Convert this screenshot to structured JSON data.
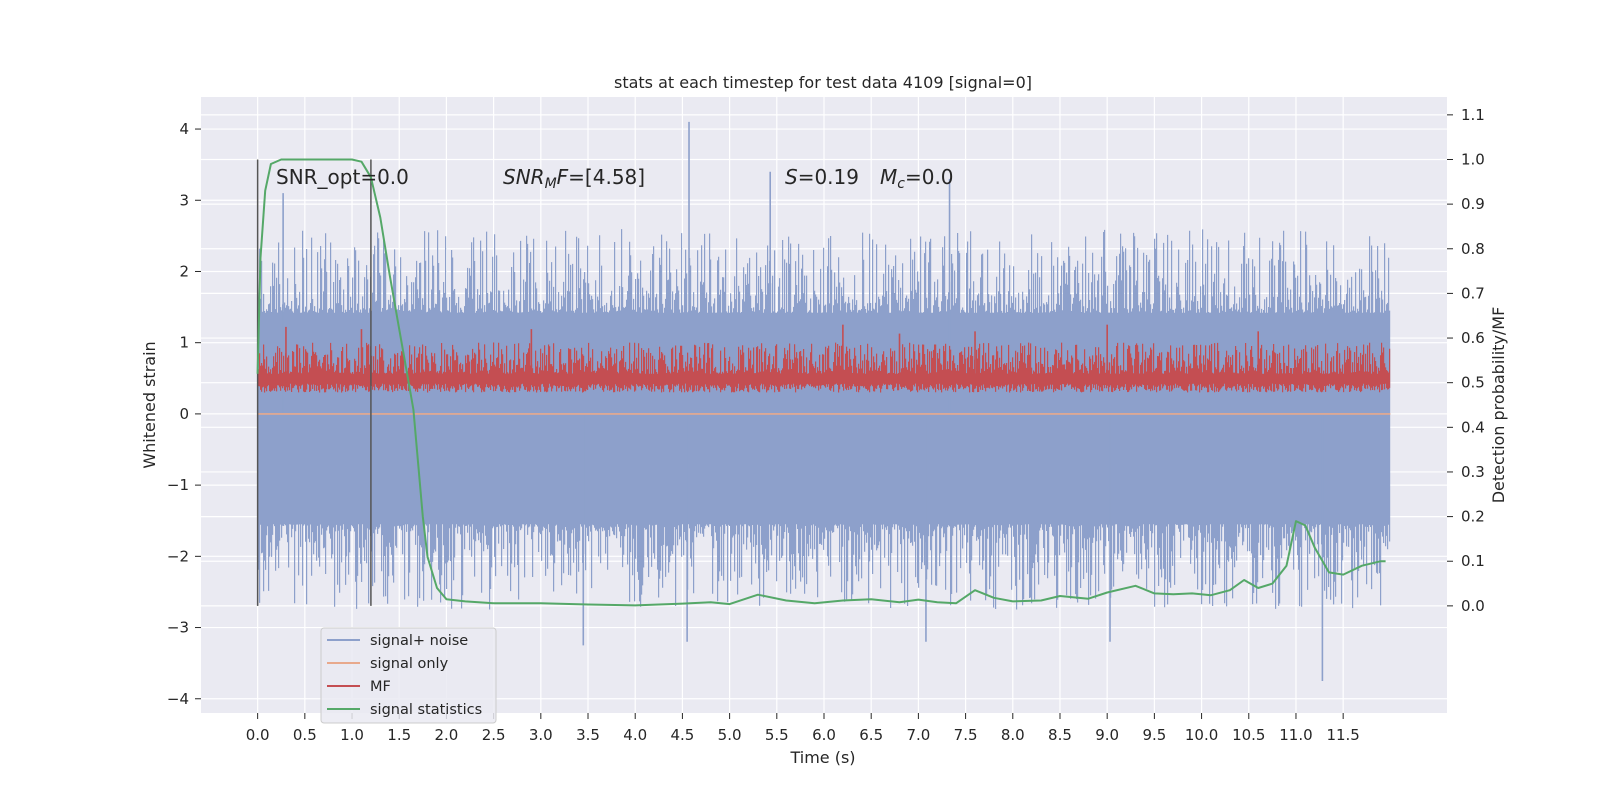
{
  "chart_data": {
    "type": "line",
    "title": "stats at each timestep for test data 4109 [signal=0]",
    "xlabel": "Time (s)",
    "ylabel_left": "Whitened strain",
    "ylabel_right": "Detection probability/MF",
    "xlim": [
      -0.6,
      12.6
    ],
    "ylim_left": [
      -4.2,
      4.45
    ],
    "ylim_right": [
      -0.24,
      1.14
    ],
    "x_ticks": [
      0.0,
      0.5,
      1.0,
      1.5,
      2.0,
      2.5,
      3.0,
      3.5,
      4.0,
      4.5,
      5.0,
      5.5,
      6.0,
      6.5,
      7.0,
      7.5,
      8.0,
      8.5,
      9.0,
      9.5,
      10.0,
      10.5,
      11.0,
      11.5
    ],
    "x_tick_labels": [
      "0.0",
      "0.5",
      "1.0",
      "1.5",
      "2.0",
      "2.5",
      "3.0",
      "3.5",
      "4.0",
      "4.5",
      "5.0",
      "5.5",
      "6.0",
      "6.5",
      "7.0",
      "7.5",
      "8.0",
      "8.5",
      "9.0",
      "9.5",
      "10.0",
      "10.5",
      "11.0",
      "11.5"
    ],
    "y_ticks_left": [
      4,
      3,
      2,
      1,
      0,
      -1,
      -2,
      -3,
      -4
    ],
    "y_tick_labels_left": [
      "4",
      "3",
      "2",
      "1",
      "0",
      "−1",
      "−2",
      "−3",
      "−4"
    ],
    "y_ticks_right": [
      1.1,
      1.0,
      0.9,
      0.8,
      0.7,
      0.6,
      0.5,
      0.4,
      0.3,
      0.2,
      0.1,
      0.0
    ],
    "y_tick_labels_right": [
      "1.1",
      "1.0",
      "0.9",
      "0.8",
      "0.7",
      "0.6",
      "0.5",
      "0.4",
      "0.3",
      "0.2",
      "0.1",
      "0.0"
    ],
    "grid": true,
    "legend_position": "lower-left",
    "annotations": [
      "SNR_opt=0.0",
      "SNR_MF=[4.58]",
      "S=0.19",
      "M_c=0.0"
    ],
    "vertical_markers": [
      {
        "x": 0.0,
        "y_range_right": [
          0.0,
          1.0
        ]
      },
      {
        "x": 1.2,
        "y_range_right": [
          0.0,
          1.0
        ]
      }
    ],
    "series": [
      {
        "name": "signal+ noise",
        "axis": "left",
        "color": "#8da0cb",
        "x_range": [
          0.0,
          12.0
        ],
        "band": {
          "typical_low": -1.55,
          "typical_high": 1.42,
          "spike_low": -3.25,
          "spike_high": 4.1
        },
        "notable_spikes": [
          {
            "x": 0.27,
            "y": 3.1
          },
          {
            "x": 4.57,
            "y": 4.1
          },
          {
            "x": 5.43,
            "y": 3.4
          },
          {
            "x": 7.33,
            "y": 3.3
          },
          {
            "x": 3.45,
            "y": -3.25
          },
          {
            "x": 4.55,
            "y": -3.2
          },
          {
            "x": 7.08,
            "y": -3.2
          },
          {
            "x": 9.03,
            "y": -3.2
          },
          {
            "x": 11.28,
            "y": -3.75
          }
        ]
      },
      {
        "name": "signal only",
        "axis": "left",
        "color": "#e8a98c",
        "x_range": [
          0.0,
          12.0
        ],
        "constant_value": 0.0
      },
      {
        "name": "MF",
        "axis": "right",
        "color": "#c44e52",
        "x_range": [
          0.0,
          12.0
        ],
        "band": {
          "typical_low": 0.48,
          "typical_high": 0.58,
          "spike_high": 0.63
        },
        "notable_spikes": [
          {
            "x": 0.3,
            "y": 0.625
          },
          {
            "x": 1.1,
            "y": 0.62
          },
          {
            "x": 2.9,
            "y": 0.62
          },
          {
            "x": 6.2,
            "y": 0.63
          },
          {
            "x": 6.8,
            "y": 0.61
          },
          {
            "x": 7.6,
            "y": 0.615
          },
          {
            "x": 9.0,
            "y": 0.63
          },
          {
            "x": 10.6,
            "y": 0.615
          }
        ]
      },
      {
        "name": "signal statistics",
        "axis": "right",
        "color": "#55a868",
        "x": [
          0.0,
          0.03,
          0.08,
          0.14,
          0.25,
          0.4,
          0.6,
          0.8,
          1.0,
          1.1,
          1.2,
          1.3,
          1.4,
          1.5,
          1.6,
          1.65,
          1.7,
          1.75,
          1.8,
          1.9,
          2.0,
          2.2,
          2.5,
          3.0,
          3.5,
          4.0,
          4.5,
          4.8,
          5.0,
          5.3,
          5.6,
          5.9,
          6.2,
          6.5,
          6.8,
          7.0,
          7.2,
          7.4,
          7.6,
          7.8,
          8.0,
          8.3,
          8.5,
          8.8,
          9.0,
          9.3,
          9.5,
          9.7,
          9.9,
          10.1,
          10.3,
          10.45,
          10.6,
          10.75,
          10.9,
          11.0,
          11.1,
          11.2,
          11.35,
          11.5,
          11.7,
          11.9,
          11.95
        ],
        "y": [
          0.52,
          0.78,
          0.93,
          0.99,
          1.0,
          1.0,
          1.0,
          1.0,
          1.0,
          0.995,
          0.96,
          0.87,
          0.74,
          0.62,
          0.5,
          0.44,
          0.32,
          0.2,
          0.11,
          0.04,
          0.015,
          0.01,
          0.006,
          0.006,
          0.003,
          0.001,
          0.005,
          0.008,
          0.004,
          0.025,
          0.012,
          0.006,
          0.012,
          0.015,
          0.008,
          0.014,
          0.008,
          0.006,
          0.035,
          0.018,
          0.01,
          0.012,
          0.022,
          0.016,
          0.03,
          0.045,
          0.028,
          0.026,
          0.028,
          0.024,
          0.035,
          0.058,
          0.04,
          0.05,
          0.09,
          0.19,
          0.18,
          0.13,
          0.075,
          0.07,
          0.09,
          0.1,
          0.1
        ]
      }
    ]
  }
}
